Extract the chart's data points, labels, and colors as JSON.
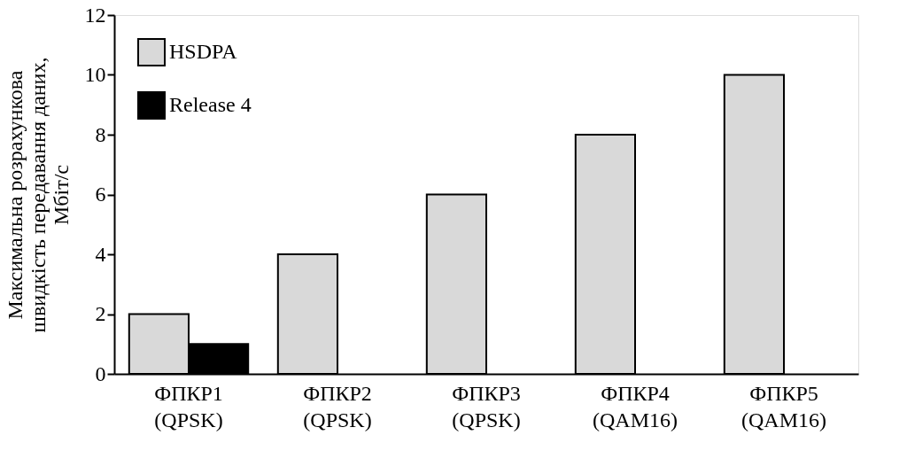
{
  "chart_data": {
    "type": "bar",
    "ylabel": "Максимальна розрахункова\nшвидкість передавання даних,\nМбіт/с",
    "categories": [
      "ФПКР1\n(QPSK)",
      "ФПКР2\n(QPSK)",
      "ФПКР3\n(QPSK)",
      "ФПКР4\n(QAM16)",
      "ФПКР5\n(QAM16)"
    ],
    "series": [
      {
        "name": "HSDPA",
        "color": "#d9d9d9",
        "values": [
          2,
          4,
          6,
          8,
          10
        ]
      },
      {
        "name": "Release 4",
        "color": "#000000",
        "values": [
          1,
          null,
          null,
          null,
          null
        ]
      }
    ],
    "ylim": [
      0,
      12
    ],
    "yticks": [
      0,
      2,
      4,
      6,
      8,
      10,
      12
    ],
    "grid": false,
    "legend": "top left"
  }
}
